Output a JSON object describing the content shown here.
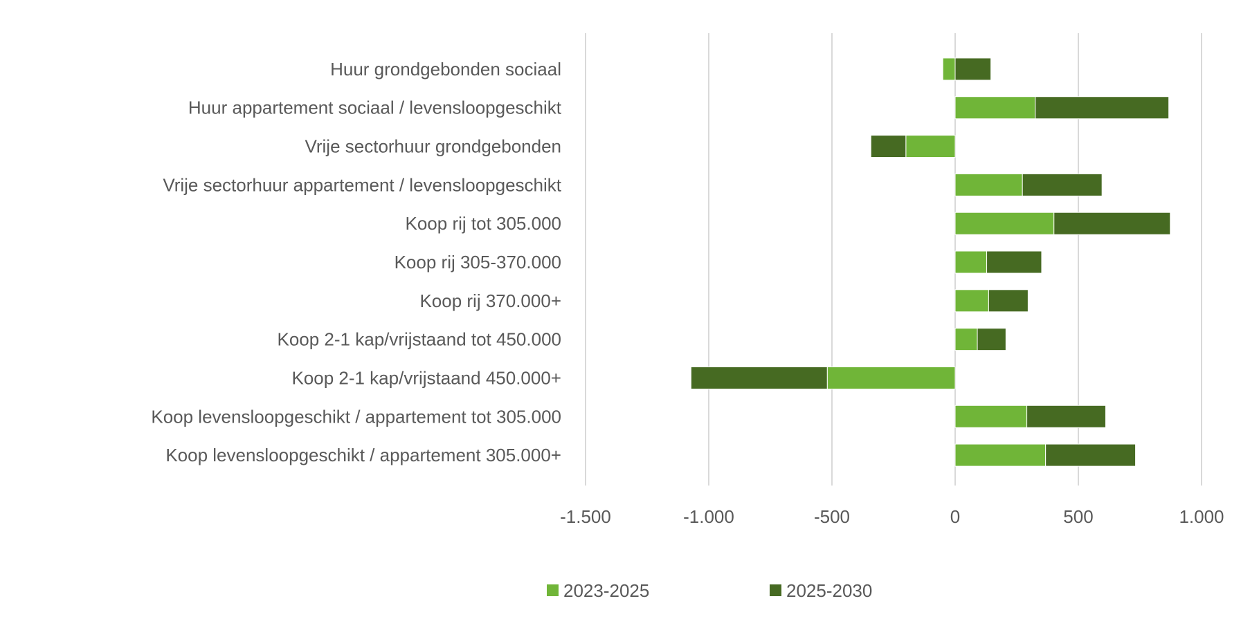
{
  "chart_data": {
    "type": "bar",
    "orientation": "horizontal",
    "stacked": true,
    "title": "",
    "xlabel": "",
    "ylabel": "",
    "categories": [
      "Huur grondgebonden sociaal",
      "Huur appartement sociaal / levensloopgeschikt",
      "Vrije sectorhuur grondgebonden",
      "Vrije sectorhuur appartement / levensloopgeschikt",
      "Koop rij tot 305.000",
      "Koop rij 305-370.000",
      "Koop rij 370.000+",
      "Koop 2-1 kap/vrijstaand tot 450.000",
      "Koop 2-1 kap/vrijstaand 450.000+",
      "Koop levensloopgeschikt / appartement tot 305.000",
      "Koop levensloopgeschikt / appartement 305.000+"
    ],
    "series": [
      {
        "name": "2023-2025",
        "color": "#70b538",
        "values": [
          -50,
          325,
          -200,
          273,
          401,
          128,
          136,
          90,
          -519,
          291,
          367
        ]
      },
      {
        "name": "2025-2030",
        "color": "#466a22",
        "values": [
          145,
          542,
          -142,
          323,
          472,
          223,
          160,
          116,
          -553,
          320,
          365
        ]
      }
    ],
    "xlim": [
      -1500,
      1000
    ],
    "xticks": [
      -1500,
      -1000,
      -500,
      0,
      500,
      1000
    ],
    "xtick_labels": [
      "-1.500",
      "-1.000",
      "-500",
      "0",
      "500",
      "1.000"
    ],
    "grid": true,
    "legend": "bottom"
  }
}
